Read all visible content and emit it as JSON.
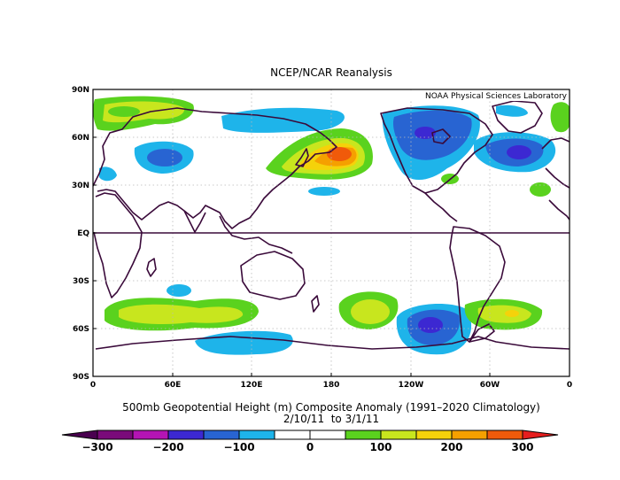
{
  "title": "NCEP/NCAR Reanalysis",
  "attribution": "NOAA Physical Sciences Laboratory",
  "caption": {
    "line1": "500mb Geopotential Height (m) Composite Anomaly (1991–2020 Climatology)",
    "line2": "2/10/11  to 3/1/11"
  },
  "axes": {
    "y_ticks": [
      "90N",
      "60N",
      "30N",
      "EQ",
      "30S",
      "60S",
      "90S"
    ],
    "x_ticks": [
      "0",
      "60E",
      "120E",
      "180",
      "120W",
      "60W",
      "0"
    ]
  },
  "colorbar": {
    "labels": [
      "−300",
      "−200",
      "−100",
      "0",
      "100",
      "200",
      "300"
    ],
    "colors": [
      "#7a0a7a",
      "#b414b4",
      "#3c28d2",
      "#2864d2",
      "#1eb4ea",
      "#ffffff",
      "#ffffff",
      "#5ad21e",
      "#c8e61e",
      "#f5d20a",
      "#f5a000",
      "#f05a0a"
    ],
    "low_end_color": "#4a0050",
    "high_end_color": "#e61e1e"
  },
  "palette": {
    "coast": "#3a0a3a",
    "grid": "#c0c0c0",
    "frame": "#000000"
  }
}
